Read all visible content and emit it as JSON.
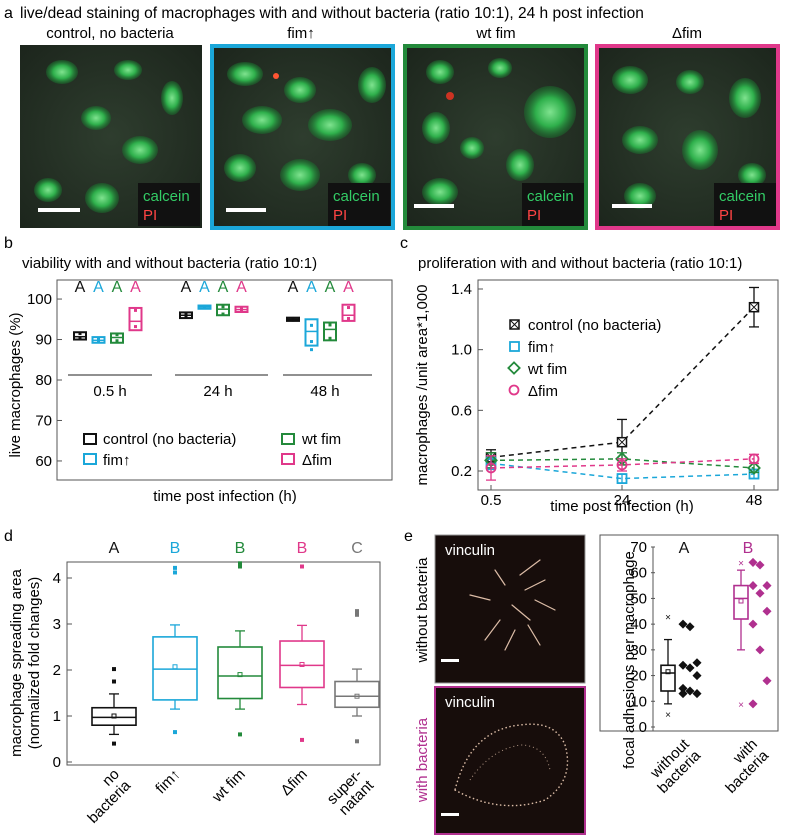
{
  "panel_a": {
    "letter": "a",
    "title": "live/dead staining of macrophages with and without bacteria (ratio 10:1), 24 h post infection",
    "images": [
      {
        "label": "control, no bacteria",
        "frame_color": "",
        "legend": [
          "calcein",
          "PI"
        ]
      },
      {
        "label": "fim↑",
        "frame_color": "#1ba7d9",
        "legend": [
          "calcein",
          "PI"
        ]
      },
      {
        "label": "wt fim",
        "frame_color": "#238a3b",
        "legend": [
          "calcein",
          "PI"
        ]
      },
      {
        "label": "Δfim",
        "frame_color": "#e0388a",
        "legend": [
          "calcein",
          "PI"
        ]
      }
    ]
  },
  "colors": {
    "control": "#111111",
    "fim_up": "#1ba7d9",
    "wt_fim": "#238a3b",
    "dfim": "#e0388a",
    "supernatant": "#777777",
    "with_bacteria": "#b0308f",
    "calcein": "#33cc66",
    "pi": "#ff4444"
  },
  "panel_b": {
    "letter": "b",
    "title": "viability with and without bacteria (ratio 10:1)",
    "ylabel": "live macrophages (%)",
    "xlabel": "time post infection (h)",
    "yticks": [
      "100",
      "90",
      "80",
      "70",
      "60"
    ],
    "group_labels": [
      "0.5 h",
      "24 h",
      "48 h"
    ],
    "letters_row": [
      "A",
      "A",
      "A",
      "A"
    ],
    "legend": [
      "control (no bacteria)",
      "fim↑",
      "wt fim",
      "Δfim"
    ]
  },
  "panel_c": {
    "letter": "c",
    "title": "proliferation with and without bacteria (ratio 10:1)",
    "ylabel": "macrophages /unit area*1,000",
    "xlabel": "time post infection (h)",
    "yticks": [
      "1.4",
      "1.0",
      "0.6",
      "0.2"
    ],
    "xticks": [
      "0.5",
      "24",
      "48"
    ],
    "legend": [
      "control (no bacteria)",
      "fim↑",
      "wt fim",
      "Δfim"
    ]
  },
  "panel_d": {
    "letter": "d",
    "ylabel_1": "macrophage spreading area",
    "ylabel_2": "(normalized fold changes)",
    "yticks": [
      "0",
      "1",
      "2",
      "3",
      "4"
    ],
    "categories": [
      "no bacteria",
      "fim↑",
      "wt fim",
      "Δfim",
      "super-natant"
    ],
    "cat_lines": [
      [
        "no",
        "bacteria"
      ],
      [
        "fim↑"
      ],
      [
        "wt fim"
      ],
      [
        "Δfim"
      ],
      [
        "super-",
        "natant"
      ]
    ],
    "letters": [
      "A",
      "B",
      "B",
      "B",
      "C"
    ]
  },
  "panel_e": {
    "letter": "e",
    "stain_label": "vinculin",
    "row_labels": [
      "without bacteria",
      "with bacteria"
    ],
    "ylabel": "focal adhesions per macrophage",
    "yticks": [
      "0",
      "10",
      "20",
      "30",
      "40",
      "50",
      "60",
      "70"
    ],
    "categories": [
      "without bacteria",
      "with bacteria"
    ],
    "cat_lines": [
      [
        "without",
        "bacteria"
      ],
      [
        "with",
        "bacteria"
      ]
    ],
    "letters": [
      "A",
      "B"
    ]
  },
  "chart_data": [
    {
      "type": "box",
      "panel": "b",
      "title": "viability with and without bacteria (ratio 10:1)",
      "xlabel": "time post infection (h)",
      "ylabel": "live macrophages (%)",
      "ylim": [
        55,
        102
      ],
      "categories": [
        "0.5 h",
        "24 h",
        "48 h"
      ],
      "series": [
        {
          "name": "control (no bacteria)",
          "boxes": [
            {
              "q1": 90,
              "median": 90.7,
              "q3": 91.8,
              "points": [
                90.2,
                91.5
              ]
            },
            {
              "q1": 95.3,
              "median": 96,
              "q3": 96.7,
              "points": [
                95.6,
                96.4
              ]
            },
            {
              "q1": 94.6,
              "median": 95,
              "q3": 95.4,
              "points": [
                94.8,
                95.2
              ]
            }
          ]
        },
        {
          "name": "fim↑",
          "boxes": [
            {
              "q1": 89.2,
              "median": 89.8,
              "q3": 90.6,
              "points": [
                89.6,
                90.2
              ]
            },
            {
              "q1": 97.6,
              "median": 98,
              "q3": 98.4,
              "points": [
                97.8,
                98.2
              ]
            },
            {
              "q1": 88.5,
              "median": 92,
              "q3": 95,
              "points": [
                87.5,
                89.5,
                93.5
              ]
            }
          ]
        },
        {
          "name": "wt fim",
          "boxes": [
            {
              "q1": 89.2,
              "median": 90.5,
              "q3": 91.5,
              "points": [
                89.7,
                91.2
              ]
            },
            {
              "q1": 96,
              "median": 97.5,
              "q3": 98.6,
              "points": [
                96.3,
                98.1
              ]
            },
            {
              "q1": 89.8,
              "median": 92.5,
              "q3": 94.2,
              "points": [
                90.3,
                93.6
              ]
            }
          ]
        },
        {
          "name": "Δfim",
          "boxes": [
            {
              "q1": 92.3,
              "median": 94.5,
              "q3": 97.8,
              "points": [
                93.2,
                97.2
              ]
            },
            {
              "q1": 96.8,
              "median": 97.4,
              "q3": 98.1,
              "points": [
                97,
                97.8
              ]
            },
            {
              "q1": 94.6,
              "median": 96,
              "q3": 98.6,
              "points": [
                95.2,
                97.9
              ]
            }
          ]
        }
      ]
    },
    {
      "type": "line",
      "panel": "c",
      "title": "proliferation with and without bacteria (ratio 10:1)",
      "xlabel": "time post infection (h)",
      "ylabel": "macrophages /unit area*1,000",
      "x": [
        0.5,
        24,
        48
      ],
      "ylim": [
        0.05,
        1.48
      ],
      "series": [
        {
          "name": "control (no bacteria)",
          "values": [
            0.29,
            0.39,
            1.28
          ],
          "errors": [
            0.05,
            0.15,
            0.13
          ]
        },
        {
          "name": "fim↑",
          "values": [
            0.25,
            0.15,
            0.18
          ],
          "errors": [
            0.04,
            0.03,
            0.03
          ]
        },
        {
          "name": "wt fim",
          "values": [
            0.27,
            0.28,
            0.22
          ],
          "errors": [
            0.05,
            0.04,
            0.03
          ]
        },
        {
          "name": "Δfim",
          "values": [
            0.22,
            0.24,
            0.28
          ],
          "errors": [
            0.08,
            0.04,
            0.03
          ]
        }
      ]
    },
    {
      "type": "box",
      "panel": "d",
      "ylabel": "macrophage spreading area (normalized fold changes)",
      "ylim": [
        0,
        4.6
      ],
      "categories": [
        "no bacteria",
        "fim↑",
        "wt fim",
        "Δfim",
        "super-natant"
      ],
      "boxes": [
        {
          "whisker_low": 0.6,
          "q1": 0.8,
          "median": 0.97,
          "q3": 1.18,
          "whisker_high": 1.48,
          "mean": 1.0,
          "outliers": [
            0.4,
            1.75,
            2.02
          ]
        },
        {
          "whisker_low": 1.15,
          "q1": 1.35,
          "median": 2.02,
          "q3": 2.72,
          "whisker_high": 2.98,
          "mean": 2.07,
          "outliers": [
            0.65,
            4.12,
            4.22
          ]
        },
        {
          "whisker_low": 1.15,
          "q1": 1.38,
          "median": 1.87,
          "q3": 2.5,
          "whisker_high": 2.85,
          "mean": 1.9,
          "outliers": [
            0.6,
            4.25,
            4.32
          ]
        },
        {
          "whisker_low": 1.25,
          "q1": 1.62,
          "median": 2.1,
          "q3": 2.63,
          "whisker_high": 2.97,
          "mean": 2.12,
          "outliers": [
            0.48,
            4.25
          ]
        },
        {
          "whisker_low": 1.0,
          "q1": 1.19,
          "median": 1.43,
          "q3": 1.75,
          "whisker_high": 2.02,
          "mean": 1.43,
          "outliers": [
            0.45,
            3.2,
            3.28
          ]
        }
      ]
    },
    {
      "type": "box",
      "panel": "e",
      "ylabel": "focal adhesions per macrophage",
      "ylim": [
        0,
        70
      ],
      "categories": [
        "without bacteria",
        "with bacteria"
      ],
      "boxes": [
        {
          "whisker_low": 9,
          "q1": 14,
          "median": 21,
          "q3": 24,
          "whisker_high": 34,
          "mean": 21.5,
          "outliers": [
            5,
            43
          ],
          "points": [
            40,
            39,
            25,
            24,
            23,
            20,
            15,
            14,
            13,
            13
          ]
        },
        {
          "whisker_low": 30,
          "q1": 42,
          "median": 50,
          "q3": 55,
          "whisker_high": 61,
          "mean": 49,
          "outliers": [
            9,
            64
          ],
          "points": [
            64,
            63,
            55,
            55,
            52,
            45,
            40,
            30,
            18,
            9
          ]
        }
      ]
    }
  ]
}
